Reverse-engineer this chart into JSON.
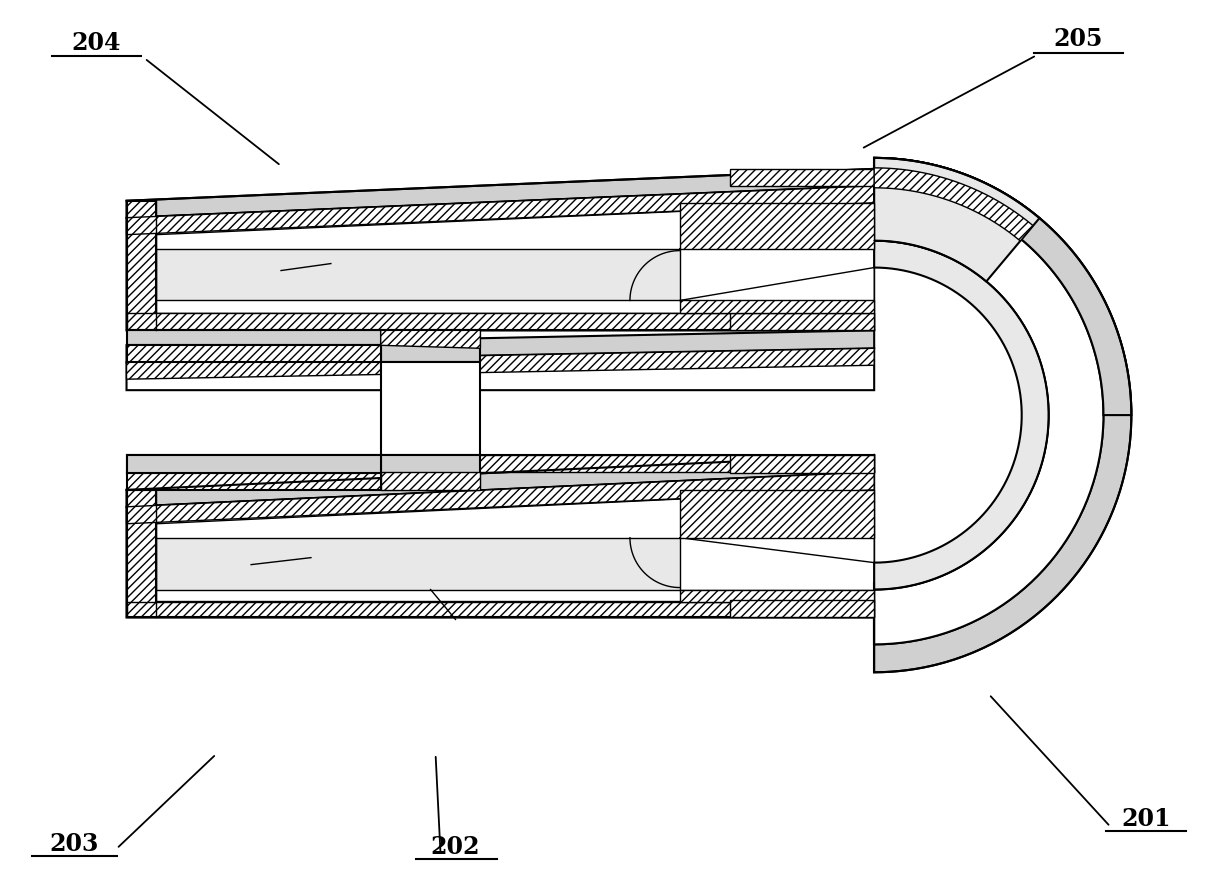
{
  "background_color": "#ffffff",
  "line_color": "#000000",
  "lw_main": 1.5,
  "lw_thin": 1.0,
  "face_white": "#ffffff",
  "face_light": "#e8e8e8",
  "face_mid": "#d0d0d0",
  "face_dark": "#b0b0b0",
  "labels": {
    "204": {
      "ix": 95,
      "iy": 42
    },
    "205": {
      "ix": 1080,
      "iy": 38
    },
    "203": {
      "ix": 72,
      "iy": 845
    },
    "202": {
      "ix": 455,
      "iy": 848
    },
    "201": {
      "ix": 1148,
      "iy": 820
    }
  },
  "label_underline": true,
  "hatch": "////"
}
